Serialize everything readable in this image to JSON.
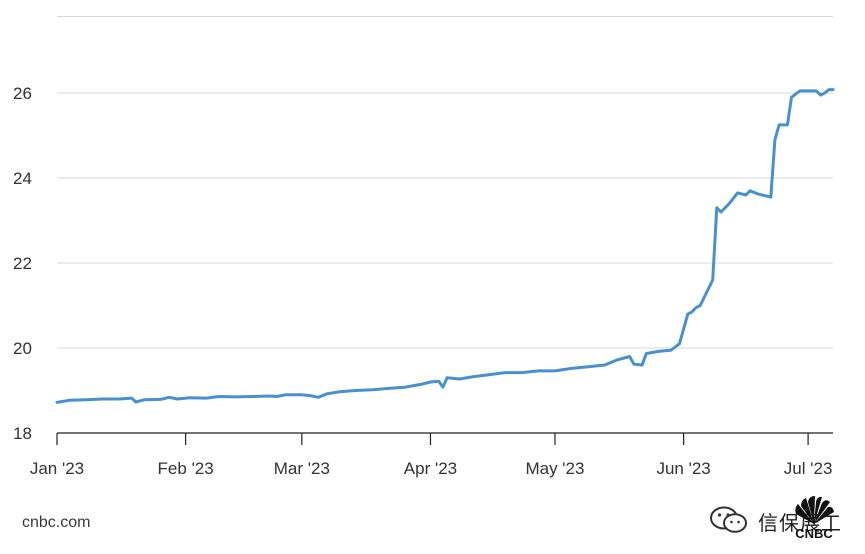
{
  "chart_data": {
    "type": "line",
    "title": "",
    "xlabel": "",
    "ylabel": "",
    "ylim": [
      18,
      27.8
    ],
    "yticks": [
      18,
      20,
      22,
      24,
      26
    ],
    "xtick_labels": [
      "Jan '23",
      "Feb '23",
      "Mar '23",
      "Apr '23",
      "May '23",
      "Jun '23",
      "Jul '23"
    ],
    "xtick_dates": [
      "2023-01-01",
      "2023-02-01",
      "2023-03-01",
      "2023-04-01",
      "2023-05-01",
      "2023-06-01",
      "2023-07-01"
    ],
    "xlim": [
      "2023-01-01",
      "2023-07-07"
    ],
    "grid": true,
    "line_color": "#4a90d0",
    "series": [
      {
        "values": [
          [
            "2023-01-01",
            18.72
          ],
          [
            "2023-01-04",
            18.77
          ],
          [
            "2023-01-08",
            18.78
          ],
          [
            "2023-01-12",
            18.8
          ],
          [
            "2023-01-16",
            18.8
          ],
          [
            "2023-01-19",
            18.82
          ],
          [
            "2023-01-20",
            18.73
          ],
          [
            "2023-01-22",
            18.78
          ],
          [
            "2023-01-26",
            18.79
          ],
          [
            "2023-01-28",
            18.84
          ],
          [
            "2023-01-30",
            18.8
          ],
          [
            "2023-02-02",
            18.83
          ],
          [
            "2023-02-06",
            18.82
          ],
          [
            "2023-02-09",
            18.86
          ],
          [
            "2023-02-13",
            18.85
          ],
          [
            "2023-02-17",
            18.86
          ],
          [
            "2023-02-21",
            18.87
          ],
          [
            "2023-02-23",
            18.86
          ],
          [
            "2023-02-25",
            18.9
          ],
          [
            "2023-03-01",
            18.9
          ],
          [
            "2023-03-03",
            18.88
          ],
          [
            "2023-03-05",
            18.84
          ],
          [
            "2023-03-07",
            18.92
          ],
          [
            "2023-03-10",
            18.97
          ],
          [
            "2023-03-14",
            19.0
          ],
          [
            "2023-03-18",
            19.02
          ],
          [
            "2023-03-22",
            19.05
          ],
          [
            "2023-03-26",
            19.08
          ],
          [
            "2023-03-30",
            19.15
          ],
          [
            "2023-04-01",
            19.2
          ],
          [
            "2023-04-03",
            19.22
          ],
          [
            "2023-04-04",
            19.08
          ],
          [
            "2023-04-05",
            19.3
          ],
          [
            "2023-04-08",
            19.27
          ],
          [
            "2023-04-11",
            19.32
          ],
          [
            "2023-04-15",
            19.37
          ],
          [
            "2023-04-19",
            19.42
          ],
          [
            "2023-04-23",
            19.42
          ],
          [
            "2023-04-27",
            19.46
          ],
          [
            "2023-05-01",
            19.46
          ],
          [
            "2023-05-05",
            19.52
          ],
          [
            "2023-05-09",
            19.56
          ],
          [
            "2023-05-13",
            19.6
          ],
          [
            "2023-05-16",
            19.72
          ],
          [
            "2023-05-19",
            19.8
          ],
          [
            "2023-05-20",
            19.62
          ],
          [
            "2023-05-22",
            19.6
          ],
          [
            "2023-05-23",
            19.87
          ],
          [
            "2023-05-26",
            19.92
          ],
          [
            "2023-05-29",
            19.95
          ],
          [
            "2023-05-31",
            20.1
          ],
          [
            "2023-06-02",
            20.8
          ],
          [
            "2023-06-03",
            20.85
          ],
          [
            "2023-06-04",
            20.95
          ],
          [
            "2023-06-05",
            21.0
          ],
          [
            "2023-06-08",
            21.6
          ],
          [
            "2023-06-09",
            23.3
          ],
          [
            "2023-06-10",
            23.2
          ],
          [
            "2023-06-12",
            23.4
          ],
          [
            "2023-06-14",
            23.65
          ],
          [
            "2023-06-16",
            23.6
          ],
          [
            "2023-06-17",
            23.7
          ],
          [
            "2023-06-19",
            23.62
          ],
          [
            "2023-06-22",
            23.55
          ],
          [
            "2023-06-23",
            24.9
          ],
          [
            "2023-06-24",
            25.25
          ],
          [
            "2023-06-26",
            25.25
          ],
          [
            "2023-06-27",
            25.9
          ],
          [
            "2023-06-29",
            26.05
          ],
          [
            "2023-07-01",
            26.05
          ],
          [
            "2023-07-03",
            26.05
          ],
          [
            "2023-07-04",
            25.95
          ],
          [
            "2023-07-05",
            26.0
          ],
          [
            "2023-07-06",
            26.08
          ],
          [
            "2023-07-07",
            26.08
          ]
        ]
      }
    ]
  },
  "source": "cnbc.com",
  "watermark": {
    "text": "信保展工",
    "logo_text": "CNBC",
    "icon": "wechat-icon"
  }
}
